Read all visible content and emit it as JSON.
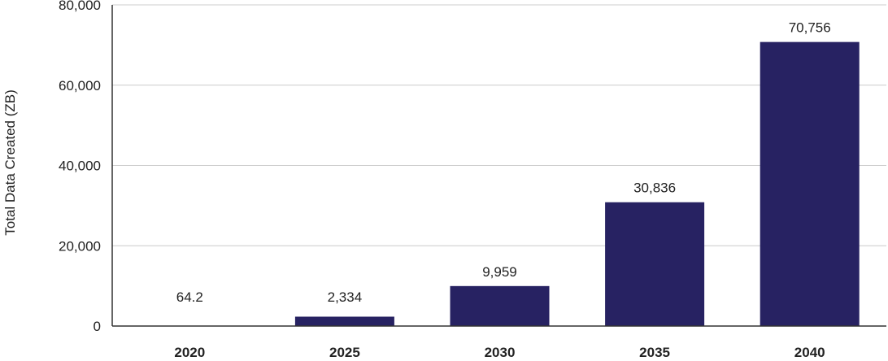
{
  "chart_data": {
    "type": "bar",
    "categories": [
      "2020",
      "2025",
      "2030",
      "2035",
      "2040"
    ],
    "values": [
      64.2,
      2334,
      9959,
      30836,
      70756
    ],
    "value_labels": [
      "64.2",
      "2,334",
      "9,959",
      "30,836",
      "70,756"
    ],
    "ylabel": "Total Data Created (ZB)",
    "xlabel": "",
    "ylim": [
      0,
      80000
    ],
    "y_ticks": [
      0,
      20000,
      40000,
      60000,
      80000
    ],
    "y_tick_labels": [
      "0",
      "20,000",
      "40,000",
      "60,000",
      "80,000"
    ],
    "grid": true,
    "legend": "none",
    "colors": {
      "bar": "#272262",
      "grid": "#cccccc",
      "axis": "#333333"
    }
  }
}
